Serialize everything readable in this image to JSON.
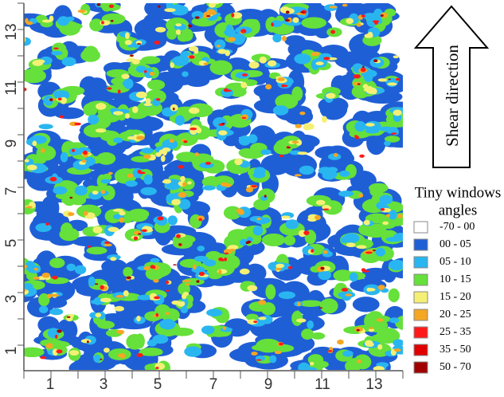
{
  "axes": {
    "x_ticks": [
      "1",
      "3",
      "5",
      "7",
      "9",
      "11",
      "13"
    ],
    "y_ticks": [
      "1",
      "3",
      "5",
      "7",
      "9",
      "11",
      "13"
    ]
  },
  "arrow": {
    "label": "Shear direction"
  },
  "legend": {
    "title": [
      "Tiny windows",
      "angles"
    ],
    "items": [
      {
        "label": "-70 - 00",
        "color": "#ffffff"
      },
      {
        "label": "00 - 05",
        "color": "#1f5fd6"
      },
      {
        "label": "05 - 10",
        "color": "#29b6f0"
      },
      {
        "label": "10 - 15",
        "color": "#66e03a"
      },
      {
        "label": "15 - 20",
        "color": "#f5f075"
      },
      {
        "label": "20 - 25",
        "color": "#f5a623"
      },
      {
        "label": "25 - 35",
        "color": "#ff1a1a"
      },
      {
        "label": "35 - 50",
        "color": "#e00000"
      },
      {
        "label": "50 - 70",
        "color": "#a00000"
      }
    ]
  }
}
